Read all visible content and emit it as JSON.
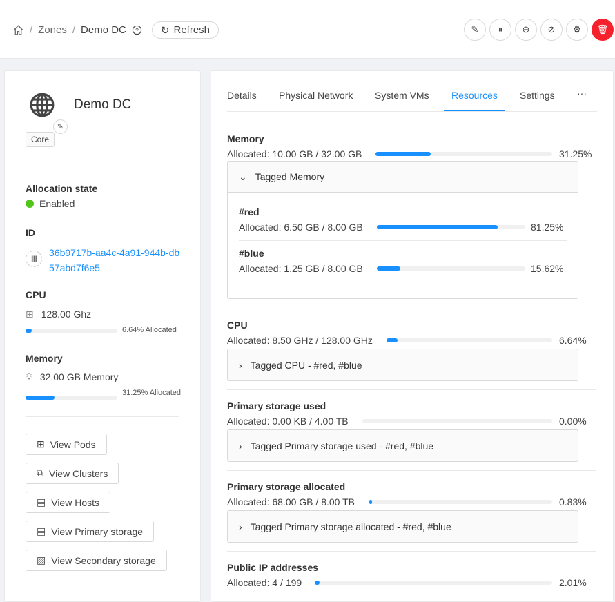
{
  "breadcrumb": {
    "home_icon": "home-icon",
    "zones": "Zones",
    "current": "Demo DC",
    "refresh": "Refresh"
  },
  "actions": [
    "edit-icon",
    "pause-icon",
    "minus-circle-icon",
    "eye-invisible-icon",
    "gear-icon",
    "delete-icon"
  ],
  "colors": {
    "accent": "#1890ff",
    "enabled": "#52c41a",
    "danger": "#f5222d"
  },
  "zone": {
    "name": "Demo DC",
    "tag": "Core",
    "allocation_label": "Allocation state",
    "allocation_value": "Enabled",
    "id_label": "ID",
    "id_line1": "36b9717b-aa4c-4a91-944b-db",
    "id_line2": "57abd7f6e5",
    "cpu_label": "CPU",
    "cpu_value": "128.00 Ghz",
    "cpu_alloc": "6.64% Allocated",
    "cpu_pct": 6.64,
    "mem_label": "Memory",
    "mem_value": "32.00 GB Memory",
    "mem_alloc": "31.25% Allocated",
    "mem_pct": 31.25
  },
  "buttons": [
    "View Pods",
    "View Clusters",
    "View Hosts",
    "View Primary storage",
    "View Secondary storage"
  ],
  "tabs": [
    "Details",
    "Physical Network",
    "System VMs",
    "Resources",
    "Settings",
    "···"
  ],
  "active_tab": "Resources",
  "resources": [
    {
      "title": "Memory",
      "alloc": "Allocated: 10.00 GB / 32.00 GB",
      "pct": 31.25,
      "pct_label": "31.25%",
      "tagged": "Tagged Memory",
      "expanded": true,
      "tags": [
        {
          "name": "#red",
          "alloc": "Allocated: 6.50 GB / 8.00 GB",
          "pct": 81.25,
          "pct_label": "81.25%"
        },
        {
          "name": "#blue",
          "alloc": "Allocated: 1.25 GB / 8.00 GB",
          "pct": 15.62,
          "pct_label": "15.62%"
        }
      ]
    },
    {
      "title": "CPU",
      "alloc": "Allocated: 8.50 GHz / 128.00 GHz",
      "pct": 6.64,
      "pct_label": "6.64%",
      "tagged": "Tagged CPU - #red, #blue"
    },
    {
      "title": "Primary storage used",
      "alloc": "Allocated: 0.00 KB / 4.00 TB",
      "pct": 0,
      "pct_label": "0.00%",
      "tagged": "Tagged Primary storage used - #red, #blue"
    },
    {
      "title": "Primary storage allocated",
      "alloc": "Allocated: 68.00 GB / 8.00 TB",
      "pct": 0.83,
      "pct_label": "0.83%",
      "tagged": "Tagged Primary storage allocated - #red, #blue"
    },
    {
      "title": "Public IP addresses",
      "alloc": "Allocated: 4 / 199",
      "pct": 2.01,
      "pct_label": "2.01%"
    }
  ]
}
